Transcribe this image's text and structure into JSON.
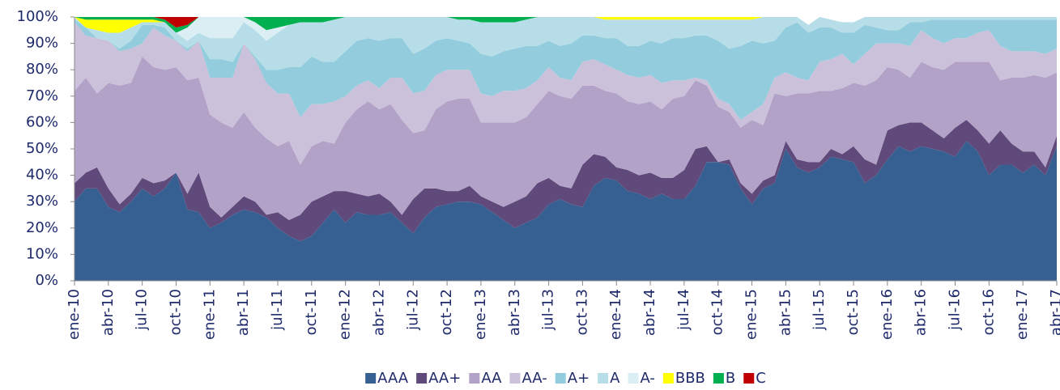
{
  "chart_data": {
    "type": "stacked_area",
    "categories": [
      "ene-10",
      null,
      null,
      "abr-10",
      null,
      null,
      "jul-10",
      null,
      null,
      "oct-10",
      null,
      null,
      "ene-11",
      null,
      null,
      "abr-11",
      null,
      null,
      "jul-11",
      null,
      null,
      "oct-11",
      null,
      null,
      "ene-12",
      null,
      null,
      "abr-12",
      null,
      null,
      "jul-12",
      null,
      null,
      "oct-12",
      null,
      null,
      "ene-13",
      null,
      null,
      "abr-13",
      null,
      null,
      "jul-13",
      null,
      null,
      "oct-13",
      null,
      null,
      "ene-14",
      null,
      null,
      "abr-14",
      null,
      null,
      "jul-14",
      null,
      null,
      "oct-14",
      null,
      null,
      "ene-15",
      null,
      null,
      "abr-15",
      null,
      null,
      "jul-15",
      null,
      null,
      "oct-15",
      null,
      null,
      "ene-16",
      null,
      null,
      "abr-16",
      null,
      null,
      "jul-16",
      null,
      null,
      "oct-16",
      null,
      null,
      "ene-17",
      null,
      null,
      "abr-17"
    ],
    "ylim": [
      0,
      100
    ],
    "yticks": [
      {
        "value": 0,
        "label": "0%"
      },
      {
        "value": 10,
        "label": "10%"
      },
      {
        "value": 20,
        "label": "20%"
      },
      {
        "value": 30,
        "label": "30%"
      },
      {
        "value": 40,
        "label": "40%"
      },
      {
        "value": 50,
        "label": "50%"
      },
      {
        "value": 60,
        "label": "60%"
      },
      {
        "value": 70,
        "label": "70%"
      },
      {
        "value": 80,
        "label": "80%"
      },
      {
        "value": 90,
        "label": "90%"
      },
      {
        "value": 100,
        "label": "100%"
      }
    ],
    "legend": "bottom",
    "series": [
      {
        "name": "AAA",
        "color": "#376092",
        "values": [
          30,
          35,
          35,
          28,
          26,
          30,
          35,
          32,
          35,
          41,
          27,
          26,
          20,
          22,
          25,
          27,
          26,
          24,
          20,
          17,
          15,
          17,
          22,
          27,
          22,
          26,
          25,
          25,
          26,
          22,
          18,
          24,
          28,
          29,
          30,
          30,
          29,
          26,
          23,
          20,
          22,
          24,
          29,
          31,
          29,
          28,
          36,
          39,
          38,
          34,
          33,
          31,
          33,
          31,
          31,
          36,
          45,
          45,
          44,
          35,
          29,
          35,
          37,
          50,
          43,
          41,
          43,
          47,
          46,
          45,
          37,
          40,
          46,
          51,
          49,
          51,
          50,
          49,
          47,
          53,
          49,
          40,
          44,
          44,
          41,
          44,
          40,
          51
        ]
      },
      {
        "name": "AA+",
        "color": "#604a7b",
        "values": [
          7,
          6,
          8,
          7,
          3,
          3,
          4,
          5,
          3,
          0,
          6,
          15,
          8,
          2,
          3,
          5,
          4,
          1,
          6,
          6,
          10,
          13,
          10,
          7,
          12,
          7,
          7,
          8,
          4,
          3,
          13,
          11,
          7,
          5,
          4,
          6,
          3,
          4,
          5,
          10,
          10,
          13,
          10,
          5,
          6,
          16,
          12,
          8,
          5,
          8,
          7,
          10,
          6,
          8,
          11,
          14,
          6,
          0,
          2,
          2,
          4,
          3,
          3,
          3,
          3,
          4,
          2,
          3,
          2,
          6,
          9,
          4,
          11,
          8,
          11,
          9,
          7,
          5,
          11,
          8,
          8,
          12,
          13,
          8,
          8,
          5,
          3,
          4
        ]
      },
      {
        "name": "AA",
        "color": "#b3a2c7",
        "values": [
          35,
          36,
          28,
          40,
          45,
          42,
          46,
          44,
          42,
          40,
          43,
          36,
          35,
          36,
          30,
          32,
          28,
          29,
          25,
          30,
          19,
          21,
          21,
          18,
          26,
          32,
          36,
          32,
          37,
          36,
          25,
          22,
          30,
          34,
          35,
          33,
          28,
          30,
          32,
          30,
          30,
          30,
          33,
          34,
          34,
          30,
          26,
          25,
          28,
          26,
          27,
          27,
          26,
          30,
          28,
          26,
          23,
          21,
          18,
          21,
          28,
          21,
          31,
          17,
          25,
          26,
          27,
          22,
          25,
          24,
          28,
          32,
          24,
          21,
          17,
          23,
          24,
          26,
          25,
          22,
          26,
          31,
          19,
          25,
          28,
          29,
          34,
          24
        ]
      },
      {
        "name": "AA-",
        "color": "#ccc1da",
        "values": [
          26,
          16,
          21,
          16,
          13,
          13,
          5,
          15,
          13,
          10,
          11,
          14,
          14,
          17,
          19,
          26,
          26,
          21,
          20,
          18,
          18,
          16,
          14,
          16,
          10,
          9,
          8,
          8,
          10,
          16,
          15,
          15,
          13,
          12,
          11,
          11,
          11,
          10,
          12,
          12,
          11,
          9,
          9,
          7,
          7,
          9,
          10,
          10,
          9,
          10,
          10,
          10,
          10,
          7,
          6,
          1,
          2,
          3,
          3,
          3,
          3,
          8,
          6,
          9,
          6,
          5,
          11,
          12,
          13,
          7,
          12,
          14,
          9,
          10,
          12,
          12,
          11,
          10,
          9,
          9,
          11,
          12,
          13,
          10,
          10,
          9,
          9,
          9
        ]
      },
      {
        "name": "A+",
        "color": "#93cddd",
        "values": [
          1,
          3,
          0,
          0,
          1,
          3,
          7,
          1,
          3,
          0,
          1,
          0,
          7,
          7,
          6,
          0,
          1,
          5,
          9,
          10,
          19,
          18,
          16,
          15,
          17,
          17,
          16,
          18,
          15,
          15,
          15,
          16,
          13,
          12,
          11,
          10,
          15,
          15,
          15,
          16,
          16,
          13,
          10,
          12,
          14,
          10,
          9,
          10,
          12,
          11,
          12,
          13,
          15,
          16,
          16,
          16,
          17,
          22,
          21,
          28,
          27,
          23,
          14,
          17,
          21,
          18,
          13,
          12,
          8,
          12,
          11,
          6,
          5,
          5,
          9,
          3,
          7,
          9,
          7,
          7,
          5,
          4,
          10,
          12,
          12,
          12,
          13,
          11
        ]
      },
      {
        "name": "A",
        "color": "#b7dee8",
        "values": [
          1,
          0,
          3,
          3,
          6,
          5,
          1,
          1,
          2,
          3,
          3,
          3,
          8,
          8,
          9,
          8,
          10,
          11,
          14,
          16,
          17,
          13,
          15,
          16,
          13,
          9,
          8,
          9,
          8,
          8,
          14,
          12,
          9,
          8,
          8,
          9,
          12,
          13,
          11,
          10,
          10,
          11,
          9,
          11,
          10,
          7,
          7,
          7,
          7,
          10,
          10,
          8,
          9,
          7,
          7,
          6,
          6,
          8,
          11,
          10,
          8,
          10,
          9,
          4,
          2,
          3,
          4,
          3,
          4,
          4,
          3,
          4,
          5,
          5,
          2,
          2,
          1,
          1,
          1,
          1,
          1,
          1,
          1,
          1,
          1,
          1,
          1,
          1
        ]
      },
      {
        "name": "A-",
        "color": "#dbeef4",
        "values": [
          0,
          0,
          0,
          0,
          0,
          0,
          0,
          0,
          0,
          0,
          5,
          6,
          8,
          8,
          8,
          2,
          3,
          4,
          2,
          0,
          0,
          0,
          0,
          0,
          0,
          0,
          0,
          0,
          0,
          0,
          0,
          0,
          0,
          0,
          0,
          0,
          0,
          0,
          0,
          0,
          0,
          0,
          0,
          0,
          0,
          0,
          0,
          0,
          0,
          0,
          0,
          0,
          0,
          0,
          0,
          0,
          0,
          0,
          0,
          0,
          0,
          0,
          0,
          0,
          0,
          0,
          0,
          0,
          0,
          0,
          0,
          0,
          0,
          0,
          0,
          0,
          0,
          0,
          0,
          0,
          0,
          0,
          0,
          0,
          0,
          0,
          0,
          0
        ]
      },
      {
        "name": "BBB",
        "color": "#ffff00",
        "values": [
          0,
          3,
          4,
          5,
          5,
          3,
          1,
          1,
          0,
          0,
          0,
          0,
          0,
          0,
          0,
          0,
          0,
          0,
          0,
          0,
          0,
          0,
          0,
          0,
          0,
          0,
          0,
          0,
          0,
          0,
          0,
          0,
          0,
          0,
          0,
          0,
          0,
          0,
          0,
          0,
          0,
          0,
          0,
          0,
          0,
          0,
          0,
          1,
          1,
          1,
          1,
          1,
          1,
          1,
          1,
          1,
          1,
          1,
          1,
          1,
          1,
          0,
          0,
          0,
          0,
          0,
          0,
          0,
          0,
          0,
          0,
          0,
          0,
          0,
          0,
          0,
          0,
          0,
          0,
          0,
          0,
          0,
          0,
          0,
          0,
          0,
          0,
          0
        ]
      },
      {
        "name": "B",
        "color": "#00b050",
        "values": [
          0,
          1,
          1,
          1,
          1,
          1,
          1,
          1,
          1,
          2,
          1,
          0,
          0,
          0,
          0,
          0,
          2,
          5,
          4,
          3,
          2,
          2,
          2,
          1,
          0,
          0,
          0,
          0,
          0,
          0,
          0,
          0,
          0,
          0,
          1,
          1,
          2,
          2,
          2,
          2,
          1,
          0,
          0,
          0,
          0,
          0,
          0,
          0,
          0,
          0,
          0,
          0,
          0,
          0,
          0,
          0,
          0,
          0,
          0,
          0,
          0,
          0,
          0,
          0,
          0,
          0,
          0,
          0,
          0,
          0,
          0,
          0,
          0,
          0,
          0,
          0,
          0,
          0,
          0,
          0,
          0,
          0,
          0,
          0,
          0,
          0,
          0,
          0
        ]
      },
      {
        "name": "C",
        "color": "#c00000",
        "values": [
          0,
          0,
          0,
          0,
          0,
          0,
          0,
          0,
          1,
          4,
          3,
          0,
          0,
          0,
          0,
          0,
          0,
          0,
          0,
          0,
          0,
          0,
          0,
          0,
          0,
          0,
          0,
          0,
          0,
          0,
          0,
          0,
          0,
          0,
          0,
          0,
          0,
          0,
          0,
          0,
          0,
          0,
          0,
          0,
          0,
          0,
          0,
          0,
          0,
          0,
          0,
          0,
          0,
          0,
          0,
          0,
          0,
          0,
          0,
          0,
          0,
          0,
          0,
          0,
          0,
          0,
          0,
          0,
          0,
          0,
          0,
          0,
          0,
          0,
          0,
          0,
          0,
          0,
          0,
          0,
          0,
          0,
          0,
          0,
          0,
          0,
          0,
          0
        ]
      }
    ]
  }
}
